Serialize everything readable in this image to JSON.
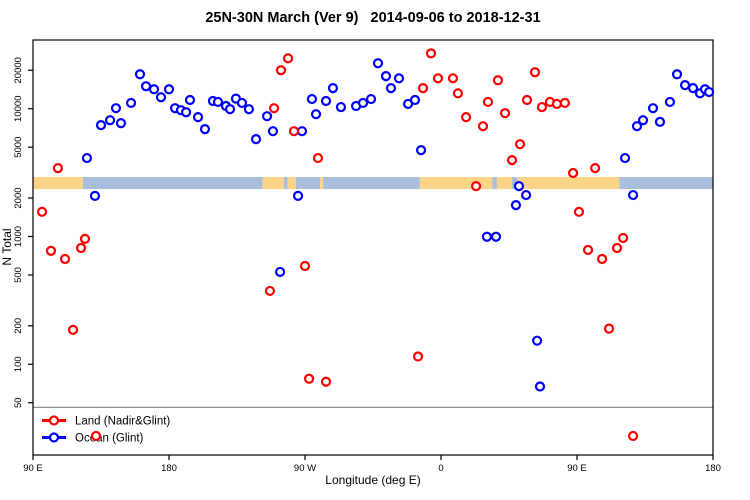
{
  "title": "25N-30N March (Ver 9)   2014-09-06 to 2018-12-31",
  "chart_data": {
    "type": "scatter",
    "title": "25N-30N March (Ver 9)   2014-09-06 to 2018-12-31",
    "xlabel": "Longitude (deg E)",
    "ylabel": "N Total",
    "grid": false,
    "legend_position": "bottom-left",
    "x_axis": {
      "description": "Longitude axis starts at 90 E, wraps eastward through 180, 90 W, 0, 90 E and ends at 180 (450 degrees total span)",
      "range_deg": [
        0,
        450
      ],
      "tick_positions_deg": [
        0,
        90,
        180,
        270,
        360,
        450
      ],
      "tick_labels": [
        "90 E",
        "180",
        "90 W",
        "0",
        "90 E",
        "180"
      ]
    },
    "y_axis": {
      "scale": "log",
      "range": [
        19.5,
        34500
      ],
      "ticks": [
        50,
        100,
        200,
        500,
        1000,
        2000,
        5000,
        10000,
        20000
      ]
    },
    "threshold_line": {
      "n": 46,
      "color": "#8f8f8f"
    },
    "coast_strip": {
      "description": "land/ocean strip along longitude",
      "n_range": [
        2350,
        2920
      ],
      "land_color": "#fbd488",
      "ocean_color": "#a9bedd",
      "segments": [
        {
          "type": "land",
          "from_deg": 0,
          "to_deg": 33
        },
        {
          "type": "ocean",
          "from_deg": 33,
          "to_deg": 152
        },
        {
          "type": "land",
          "from_deg": 152,
          "to_deg": 166
        },
        {
          "type": "ocean",
          "from_deg": 166,
          "to_deg": 168.5
        },
        {
          "type": "land",
          "from_deg": 168.5,
          "to_deg": 174
        },
        {
          "type": "ocean",
          "from_deg": 174,
          "to_deg": 190
        },
        {
          "type": "land",
          "from_deg": 190,
          "to_deg": 192
        },
        {
          "type": "ocean",
          "from_deg": 192,
          "to_deg": 256
        },
        {
          "type": "land",
          "from_deg": 256,
          "to_deg": 304
        },
        {
          "type": "ocean",
          "from_deg": 304,
          "to_deg": 307
        },
        {
          "type": "land",
          "from_deg": 307,
          "to_deg": 317
        },
        {
          "type": "ocean",
          "from_deg": 317,
          "to_deg": 320.5
        },
        {
          "type": "land",
          "from_deg": 320.5,
          "to_deg": 388
        },
        {
          "type": "ocean",
          "from_deg": 388,
          "to_deg": 450
        }
      ]
    },
    "series": [
      {
        "name": "Ocean (Glint)",
        "color": "#0000ff",
        "marker": "open-circle",
        "points": [
          [
            35.7,
            4110
          ],
          [
            41,
            2080
          ],
          [
            45,
            7440
          ],
          [
            51,
            8130
          ],
          [
            54.9,
            10100
          ],
          [
            58.2,
            7710
          ],
          [
            64.9,
            11100
          ],
          [
            70.8,
            18600
          ],
          [
            74.8,
            15000
          ],
          [
            80.1,
            14200
          ],
          [
            84.7,
            12300
          ],
          [
            90,
            14200
          ],
          [
            94,
            10100
          ],
          [
            97.9,
            9740
          ],
          [
            101.3,
            9390
          ],
          [
            103.9,
            11700
          ],
          [
            109.2,
            8590
          ],
          [
            113.8,
            6920
          ],
          [
            119.1,
            11500
          ],
          [
            122.4,
            11300
          ],
          [
            127.7,
            10500
          ],
          [
            130.4,
            9920
          ],
          [
            134.3,
            12000
          ],
          [
            138.3,
            11100
          ],
          [
            142.9,
            9920
          ],
          [
            147.6,
            5780
          ],
          [
            154.9,
            8740
          ],
          [
            158.8,
            6670
          ],
          [
            163.5,
            528
          ],
          [
            175.4,
            2080
          ],
          [
            178,
            6670
          ],
          [
            184.6,
            11900
          ],
          [
            187.3,
            9060
          ],
          [
            193.9,
            11500
          ],
          [
            198.5,
            14500
          ],
          [
            203.8,
            10300
          ],
          [
            213.8,
            10500
          ],
          [
            218.4,
            11100
          ],
          [
            223.7,
            11900
          ],
          [
            228.3,
            22700
          ],
          [
            233.6,
            18000
          ],
          [
            236.9,
            14500
          ],
          [
            242.2,
            17300
          ],
          [
            248.2,
            10900
          ],
          [
            252.8,
            11700
          ],
          [
            256.8,
            4740
          ],
          [
            300.4,
            996
          ],
          [
            306.4,
            996
          ],
          [
            321.6,
            2480
          ],
          [
            326.3,
            2110
          ],
          [
            319.6,
            1760
          ],
          [
            333.6,
            153
          ],
          [
            335.5,
            67
          ],
          [
            391.8,
            4110
          ],
          [
            397.1,
            2110
          ],
          [
            399.7,
            7300
          ],
          [
            403.7,
            8130
          ],
          [
            414.9,
            7890
          ],
          [
            410.3,
            10100
          ],
          [
            421.5,
            11300
          ],
          [
            426.2,
            18600
          ],
          [
            431.5,
            15300
          ],
          [
            436.8,
            14500
          ],
          [
            441.4,
            13200
          ],
          [
            444.7,
            14200
          ],
          [
            447.4,
            13500
          ]
        ]
      },
      {
        "name": "Land (Nadir&Glint)",
        "color": "#ff0000",
        "marker": "open-circle",
        "points": [
          [
            16.5,
            3430
          ],
          [
            6,
            1560
          ],
          [
            34.4,
            958
          ],
          [
            31.8,
            813
          ],
          [
            11.9,
            772
          ],
          [
            21.2,
            667
          ],
          [
            26.5,
            186
          ],
          [
            41.7,
            27.5
          ],
          [
            168.8,
            24800
          ],
          [
            164.1,
            20000
          ],
          [
            159.5,
            10100
          ],
          [
            172.7,
            6670
          ],
          [
            188.6,
            4110
          ],
          [
            180,
            588
          ],
          [
            156.8,
            375
          ],
          [
            182.7,
            77
          ],
          [
            193.9,
            73
          ],
          [
            254.8,
            115
          ],
          [
            263.4,
            27100
          ],
          [
            258.1,
            14500
          ],
          [
            268,
            17300
          ],
          [
            277.9,
            17300
          ],
          [
            281.2,
            13200
          ],
          [
            286.6,
            8590
          ],
          [
            297.8,
            7300
          ],
          [
            301.1,
            11300
          ],
          [
            293.2,
            2480
          ],
          [
            307.7,
            16700
          ],
          [
            332.2,
            19300
          ],
          [
            312.4,
            9230
          ],
          [
            326.9,
            11700
          ],
          [
            336.8,
            10300
          ],
          [
            342.1,
            11300
          ],
          [
            346.7,
            10900
          ],
          [
            352,
            11100
          ],
          [
            322.3,
            5280
          ],
          [
            317,
            3960
          ],
          [
            357.4,
            3140
          ],
          [
            372,
            3430
          ],
          [
            361.3,
            1560
          ],
          [
            390.5,
            974
          ],
          [
            386.5,
            813
          ],
          [
            367.3,
            785
          ],
          [
            376.6,
            667
          ],
          [
            381.2,
            190
          ],
          [
            397.1,
            27.5
          ]
        ]
      }
    ],
    "legend": {
      "items": [
        {
          "label": "Land (Nadir&Glint)",
          "color": "#ff0000"
        },
        {
          "label": "Ocean (Glint)",
          "color": "#0000ff"
        }
      ]
    }
  }
}
